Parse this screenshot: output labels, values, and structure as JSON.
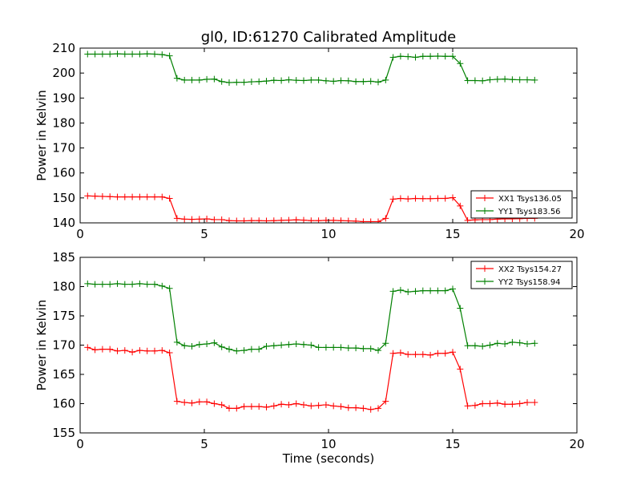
{
  "chart_data": [
    {
      "type": "line",
      "title": "gl0, ID:61270 Calibrated Amplitude",
      "xlabel": "",
      "ylabel": "Power in Kelvin",
      "xlim": [
        0,
        20
      ],
      "ylim": [
        140,
        210
      ],
      "xticks": [
        "0",
        "5",
        "10",
        "15",
        "20"
      ],
      "yticks": [
        "140",
        "150",
        "160",
        "170",
        "180",
        "190",
        "200",
        "210"
      ],
      "legend_position": "lower-right",
      "x": [
        0.3,
        0.6,
        0.9,
        1.2,
        1.5,
        1.8,
        2.1,
        2.4,
        2.7,
        3.0,
        3.3,
        3.6,
        3.9,
        4.2,
        4.5,
        4.8,
        5.1,
        5.4,
        5.7,
        6.0,
        6.3,
        6.6,
        6.9,
        7.2,
        7.5,
        7.8,
        8.1,
        8.4,
        8.7,
        9.0,
        9.3,
        9.6,
        9.9,
        10.2,
        10.5,
        10.8,
        11.1,
        11.4,
        11.7,
        12.0,
        12.3,
        12.6,
        12.9,
        13.2,
        13.5,
        13.8,
        14.1,
        14.4,
        14.7,
        15.0,
        15.3,
        15.6,
        15.9,
        16.2,
        16.5,
        16.8,
        17.1,
        17.4,
        17.7,
        18.0,
        18.3
      ],
      "series": [
        {
          "name": "XX1 Tsys136.05",
          "color": "#ff0000",
          "values": [
            150.8,
            150.7,
            150.6,
            150.5,
            150.4,
            150.4,
            150.4,
            150.4,
            150.4,
            150.4,
            150.4,
            149.8,
            141.8,
            141.5,
            141.4,
            141.5,
            141.6,
            141.3,
            141.3,
            140.9,
            140.8,
            140.8,
            140.9,
            140.9,
            140.8,
            140.9,
            141.0,
            141.1,
            141.2,
            141.1,
            140.9,
            140.9,
            141.0,
            141.0,
            140.9,
            140.8,
            140.7,
            140.5,
            140.5,
            140.5,
            141.8,
            149.5,
            149.8,
            149.6,
            149.8,
            149.7,
            149.7,
            149.8,
            149.8,
            150.1,
            146.8,
            141.0,
            141.2,
            141.3,
            141.3,
            141.5,
            141.6,
            141.6,
            141.7,
            141.8,
            141.8
          ]
        },
        {
          "name": "YY1 Tsys183.56",
          "color": "#008000",
          "values": [
            207.6,
            207.6,
            207.6,
            207.6,
            207.7,
            207.6,
            207.6,
            207.6,
            207.7,
            207.6,
            207.4,
            206.9,
            197.9,
            197.2,
            197.2,
            197.2,
            197.5,
            197.6,
            196.6,
            196.2,
            196.3,
            196.3,
            196.5,
            196.6,
            196.8,
            197.1,
            197.0,
            197.3,
            197.1,
            197.0,
            197.2,
            197.2,
            196.9,
            196.7,
            197.0,
            196.9,
            196.6,
            196.6,
            196.7,
            196.4,
            197.2,
            206.3,
            206.7,
            206.6,
            206.3,
            206.7,
            206.7,
            206.8,
            206.7,
            206.7,
            203.8,
            197.0,
            197.0,
            196.9,
            197.3,
            197.5,
            197.6,
            197.4,
            197.3,
            197.3,
            197.2
          ]
        }
      ]
    },
    {
      "type": "line",
      "title": "",
      "xlabel": "Time (seconds)",
      "ylabel": "Power in Kelvin",
      "xlim": [
        0,
        20
      ],
      "ylim": [
        155,
        185
      ],
      "xticks": [
        "0",
        "5",
        "10",
        "15",
        "20"
      ],
      "yticks": [
        "155",
        "160",
        "165",
        "170",
        "175",
        "180",
        "185"
      ],
      "legend_position": "upper-right",
      "x": [
        0.3,
        0.6,
        0.9,
        1.2,
        1.5,
        1.8,
        2.1,
        2.4,
        2.7,
        3.0,
        3.3,
        3.6,
        3.9,
        4.2,
        4.5,
        4.8,
        5.1,
        5.4,
        5.7,
        6.0,
        6.3,
        6.6,
        6.9,
        7.2,
        7.5,
        7.8,
        8.1,
        8.4,
        8.7,
        9.0,
        9.3,
        9.6,
        9.9,
        10.2,
        10.5,
        10.8,
        11.1,
        11.4,
        11.7,
        12.0,
        12.3,
        12.6,
        12.9,
        13.2,
        13.5,
        13.8,
        14.1,
        14.4,
        14.7,
        15.0,
        15.3,
        15.6,
        15.9,
        16.2,
        16.5,
        16.8,
        17.1,
        17.4,
        17.7,
        18.0,
        18.3
      ],
      "series": [
        {
          "name": "XX2 Tsys154.27",
          "color": "#ff0000",
          "values": [
            169.6,
            169.2,
            169.3,
            169.3,
            169.0,
            169.1,
            168.8,
            169.1,
            169.0,
            169.0,
            169.1,
            168.7,
            160.4,
            160.2,
            160.1,
            160.3,
            160.3,
            160.0,
            159.8,
            159.2,
            159.2,
            159.5,
            159.5,
            159.5,
            159.4,
            159.6,
            159.9,
            159.8,
            160.0,
            159.8,
            159.6,
            159.7,
            159.8,
            159.6,
            159.5,
            159.3,
            159.3,
            159.2,
            159.0,
            159.2,
            160.4,
            168.6,
            168.7,
            168.4,
            168.4,
            168.4,
            168.3,
            168.6,
            168.6,
            168.8,
            165.9,
            159.6,
            159.7,
            160.0,
            160.0,
            160.1,
            159.9,
            159.9,
            160.0,
            160.2,
            160.2
          ]
        },
        {
          "name": "YY2 Tsys158.94",
          "color": "#008000",
          "values": [
            180.5,
            180.4,
            180.4,
            180.4,
            180.5,
            180.4,
            180.4,
            180.5,
            180.4,
            180.4,
            180.1,
            179.7,
            170.5,
            169.9,
            169.8,
            170.1,
            170.2,
            170.4,
            169.7,
            169.3,
            169.0,
            169.1,
            169.3,
            169.3,
            169.8,
            169.9,
            170.0,
            170.1,
            170.2,
            170.1,
            170.0,
            169.6,
            169.6,
            169.6,
            169.6,
            169.5,
            169.5,
            169.4,
            169.4,
            169.1,
            170.3,
            179.2,
            179.4,
            179.1,
            179.2,
            179.3,
            179.3,
            179.3,
            179.3,
            179.6,
            176.3,
            169.9,
            169.9,
            169.8,
            170.0,
            170.3,
            170.2,
            170.5,
            170.4,
            170.2,
            170.3
          ]
        }
      ]
    }
  ]
}
